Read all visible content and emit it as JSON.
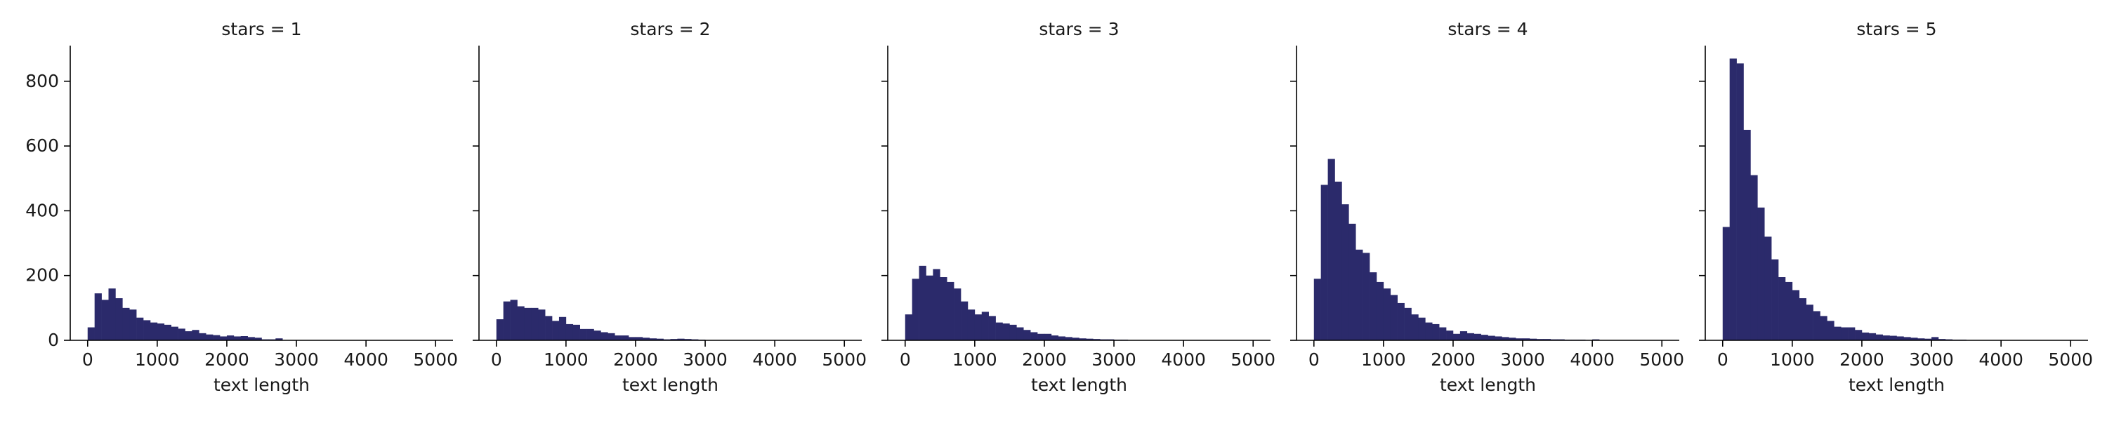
{
  "chart_data": {
    "type": "bar",
    "layout": "facet-grid of histograms, 1 row x 5 columns, shared y axis",
    "bar_color": "#2b2a6b",
    "axis_color": "#000000",
    "grid": false,
    "shared_ylim": [
      0,
      910
    ],
    "xlim": [
      -250,
      5250
    ],
    "bin_width": 100,
    "yticks": [
      0,
      200,
      400,
      600,
      800
    ],
    "xticks": [
      0,
      1000,
      2000,
      3000,
      4000,
      5000
    ],
    "ytick_labels": [
      "0",
      "200",
      "400",
      "600",
      "800"
    ],
    "xtick_labels": [
      "0",
      "1000",
      "2000",
      "3000",
      "4000",
      "5000"
    ],
    "panels": [
      {
        "title": "stars = 1",
        "xlabel": "text length",
        "bin_starts": [
          0,
          100,
          200,
          300,
          400,
          500,
          600,
          700,
          800,
          900,
          1000,
          1100,
          1200,
          1300,
          1400,
          1500,
          1600,
          1700,
          1800,
          1900,
          2000,
          2100,
          2200,
          2300,
          2400,
          2500,
          2600,
          2700,
          2800,
          2900,
          3000,
          3100,
          3200,
          3300,
          3400,
          3500,
          3600,
          3700,
          3800,
          3900,
          4000,
          4100,
          4200,
          4300,
          4400,
          4500,
          4600,
          4700,
          4800,
          4900,
          5000
        ],
        "counts": [
          40,
          145,
          125,
          160,
          130,
          100,
          95,
          70,
          62,
          55,
          52,
          48,
          42,
          36,
          28,
          32,
          22,
          18,
          16,
          12,
          15,
          12,
          13,
          10,
          8,
          3,
          3,
          6,
          1,
          1,
          1,
          0,
          1,
          0,
          0,
          0,
          0,
          0,
          0,
          0,
          0,
          0,
          0,
          0,
          0,
          0,
          0,
          0,
          0,
          0,
          0
        ]
      },
      {
        "title": "stars = 2",
        "xlabel": "text length",
        "bin_starts": [
          0,
          100,
          200,
          300,
          400,
          500,
          600,
          700,
          800,
          900,
          1000,
          1100,
          1200,
          1300,
          1400,
          1500,
          1600,
          1700,
          1800,
          1900,
          2000,
          2100,
          2200,
          2300,
          2400,
          2500,
          2600,
          2700,
          2800,
          2900,
          3000,
          3100,
          3200,
          3300,
          3400,
          3500,
          3600,
          3700,
          3800,
          3900,
          4000,
          4100,
          4200,
          4300,
          4400,
          4500,
          4600,
          4700,
          4800,
          4900,
          5000
        ],
        "counts": [
          65,
          120,
          125,
          105,
          100,
          100,
          95,
          75,
          60,
          72,
          50,
          48,
          35,
          35,
          30,
          25,
          22,
          15,
          15,
          10,
          10,
          8,
          6,
          5,
          3,
          4,
          5,
          4,
          3,
          2,
          1,
          1,
          0,
          1,
          0,
          0,
          0,
          0,
          0,
          0,
          0,
          0,
          0,
          0,
          0,
          0,
          0,
          0,
          0,
          0,
          0
        ]
      },
      {
        "title": "stars = 3",
        "xlabel": "text length",
        "bin_starts": [
          0,
          100,
          200,
          300,
          400,
          500,
          600,
          700,
          800,
          900,
          1000,
          1100,
          1200,
          1300,
          1400,
          1500,
          1600,
          1700,
          1800,
          1900,
          2000,
          2100,
          2200,
          2300,
          2400,
          2500,
          2600,
          2700,
          2800,
          2900,
          3000,
          3100,
          3200,
          3300,
          3400,
          3500,
          3600,
          3700,
          3800,
          3900,
          4000,
          4100,
          4200,
          4300,
          4400,
          4500,
          4600,
          4700,
          4800,
          4900,
          5000
        ],
        "counts": [
          80,
          190,
          230,
          200,
          220,
          195,
          180,
          160,
          120,
          95,
          80,
          88,
          75,
          55,
          52,
          48,
          40,
          32,
          25,
          20,
          20,
          15,
          12,
          10,
          8,
          6,
          5,
          4,
          3,
          3,
          2,
          2,
          1,
          1,
          1,
          0,
          0,
          0,
          0,
          0,
          0,
          0,
          0,
          0,
          0,
          0,
          0,
          0,
          0,
          0,
          0
        ]
      },
      {
        "title": "stars = 4",
        "xlabel": "text length",
        "bin_starts": [
          0,
          100,
          200,
          300,
          400,
          500,
          600,
          700,
          800,
          900,
          1000,
          1100,
          1200,
          1300,
          1400,
          1500,
          1600,
          1700,
          1800,
          1900,
          2000,
          2100,
          2200,
          2300,
          2400,
          2500,
          2600,
          2700,
          2800,
          2900,
          3000,
          3100,
          3200,
          3300,
          3400,
          3500,
          3600,
          3700,
          3800,
          3900,
          4000,
          4100,
          4200,
          4300,
          4400,
          4500,
          4600,
          4700,
          4800,
          4900,
          5000
        ],
        "counts": [
          190,
          480,
          560,
          490,
          420,
          360,
          280,
          270,
          210,
          180,
          160,
          140,
          115,
          100,
          80,
          70,
          55,
          50,
          40,
          30,
          20,
          28,
          22,
          20,
          17,
          14,
          12,
          10,
          8,
          6,
          6,
          5,
          4,
          4,
          3,
          3,
          2,
          2,
          2,
          1,
          3,
          1,
          1,
          1,
          1,
          1,
          0,
          0,
          0,
          1,
          0
        ]
      },
      {
        "title": "stars = 5",
        "xlabel": "text length",
        "bin_starts": [
          0,
          100,
          200,
          300,
          400,
          500,
          600,
          700,
          800,
          900,
          1000,
          1100,
          1200,
          1300,
          1400,
          1500,
          1600,
          1700,
          1800,
          1900,
          2000,
          2100,
          2200,
          2300,
          2400,
          2500,
          2600,
          2700,
          2800,
          2900,
          3000,
          3100,
          3200,
          3300,
          3400,
          3500,
          3600,
          3700,
          3800,
          3900,
          4000,
          4100,
          4200,
          4300,
          4400,
          4500,
          4600,
          4700,
          4800,
          4900,
          5000
        ],
        "counts": [
          350,
          870,
          855,
          650,
          510,
          410,
          320,
          250,
          195,
          180,
          155,
          130,
          110,
          90,
          75,
          60,
          42,
          40,
          40,
          32,
          24,
          22,
          18,
          15,
          14,
          12,
          10,
          8,
          6,
          5,
          10,
          4,
          3,
          2,
          2,
          1,
          1,
          1,
          1,
          1,
          0,
          0,
          0,
          0,
          0,
          0,
          0,
          0,
          0,
          0,
          0
        ]
      }
    ]
  }
}
